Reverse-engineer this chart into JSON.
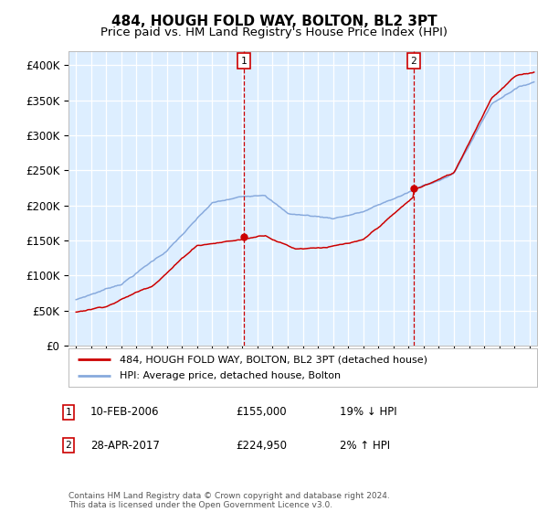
{
  "title": "484, HOUGH FOLD WAY, BOLTON, BL2 3PT",
  "subtitle": "Price paid vs. HM Land Registry's House Price Index (HPI)",
  "ylim": [
    0,
    420000
  ],
  "yticks": [
    0,
    50000,
    100000,
    150000,
    200000,
    250000,
    300000,
    350000,
    400000
  ],
  "ytick_labels": [
    "£0",
    "£50K",
    "£100K",
    "£150K",
    "£200K",
    "£250K",
    "£300K",
    "£350K",
    "£400K"
  ],
  "xlim_start": 1994.5,
  "xlim_end": 2025.5,
  "xtick_years": [
    1995,
    1996,
    1997,
    1998,
    1999,
    2000,
    2001,
    2002,
    2003,
    2004,
    2005,
    2006,
    2007,
    2008,
    2009,
    2010,
    2011,
    2012,
    2013,
    2014,
    2015,
    2016,
    2017,
    2018,
    2019,
    2020,
    2021,
    2022,
    2023,
    2024,
    2025
  ],
  "vline1_x": 2006.1,
  "vline2_x": 2017.33,
  "marker1_price": 155000,
  "marker2_price": 224950,
  "chart_bg_color": "#ddeeff",
  "grid_color": "#ffffff",
  "red_line_color": "#cc0000",
  "blue_line_color": "#88aadd",
  "legend_label_red": "484, HOUGH FOLD WAY, BOLTON, BL2 3PT (detached house)",
  "legend_label_blue": "HPI: Average price, detached house, Bolton",
  "table_row1": [
    "1",
    "10-FEB-2006",
    "£155,000",
    "19% ↓ HPI"
  ],
  "table_row2": [
    "2",
    "28-APR-2017",
    "£224,950",
    "2% ↑ HPI"
  ],
  "footer": "Contains HM Land Registry data © Crown copyright and database right 2024.\nThis data is licensed under the Open Government Licence v3.0.",
  "title_fontsize": 11,
  "subtitle_fontsize": 9.5
}
